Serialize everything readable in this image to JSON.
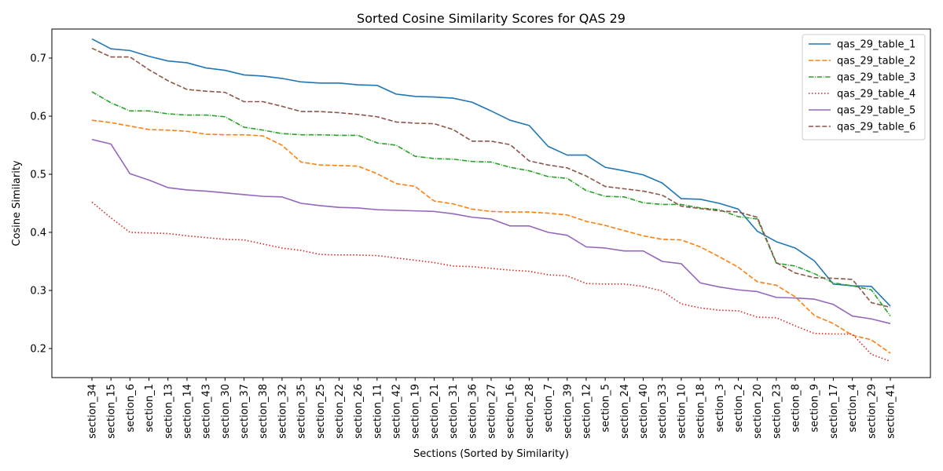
{
  "chart_data": {
    "type": "line",
    "title": "Sorted Cosine Similarity Scores for QAS 29",
    "xlabel": "Sections (Sorted by Similarity)",
    "ylabel": "Cosine Similarity",
    "ylim": [
      0.15,
      0.75
    ],
    "yticks": [
      "0.2",
      "0.3",
      "0.4",
      "0.5",
      "0.6",
      "0.7"
    ],
    "grid": false,
    "legend_position": "top-right",
    "categories": [
      "section_34",
      "section_15",
      "section_6",
      "section_1",
      "section_13",
      "section_14",
      "section_43",
      "section_30",
      "section_37",
      "section_38",
      "section_32",
      "section_35",
      "section_25",
      "section_22",
      "section_26",
      "section_11",
      "section_42",
      "section_19",
      "section_21",
      "section_31",
      "section_36",
      "section_27",
      "section_16",
      "section_28",
      "section_7",
      "section_39",
      "section_12",
      "section_5",
      "section_24",
      "section_40",
      "section_33",
      "section_10",
      "section_18",
      "section_3",
      "section_2",
      "section_20",
      "section_23",
      "section_8",
      "section_9",
      "section_17",
      "section_4",
      "section_29",
      "section_41"
    ],
    "series": [
      {
        "name": "qas_29_table_1",
        "color": "#1f77b4",
        "dash": "solid",
        "values": [
          0.733,
          0.716,
          0.713,
          0.703,
          0.695,
          0.692,
          0.683,
          0.679,
          0.671,
          0.669,
          0.665,
          0.659,
          0.657,
          0.657,
          0.654,
          0.653,
          0.638,
          0.634,
          0.633,
          0.631,
          0.624,
          0.609,
          0.593,
          0.584,
          0.548,
          0.533,
          0.533,
          0.512,
          0.506,
          0.499,
          0.485,
          0.458,
          0.457,
          0.45,
          0.44,
          0.402,
          0.384,
          0.373,
          0.351,
          0.311,
          0.308,
          0.307,
          0.273
        ]
      },
      {
        "name": "qas_29_table_2",
        "color": "#ff7f0e",
        "dash": "dashed",
        "values": [
          0.593,
          0.589,
          0.583,
          0.577,
          0.576,
          0.574,
          0.569,
          0.568,
          0.568,
          0.566,
          0.55,
          0.521,
          0.516,
          0.515,
          0.514,
          0.501,
          0.484,
          0.479,
          0.454,
          0.449,
          0.44,
          0.436,
          0.435,
          0.435,
          0.433,
          0.43,
          0.419,
          0.412,
          0.403,
          0.394,
          0.388,
          0.387,
          0.375,
          0.358,
          0.34,
          0.315,
          0.309,
          0.289,
          0.257,
          0.243,
          0.223,
          0.215,
          0.192
        ]
      },
      {
        "name": "qas_29_table_3",
        "color": "#2ca02c",
        "dash": "dashdot",
        "values": [
          0.642,
          0.623,
          0.609,
          0.609,
          0.604,
          0.602,
          0.602,
          0.599,
          0.581,
          0.576,
          0.57,
          0.568,
          0.568,
          0.567,
          0.567,
          0.554,
          0.55,
          0.531,
          0.527,
          0.526,
          0.522,
          0.521,
          0.512,
          0.506,
          0.496,
          0.493,
          0.472,
          0.462,
          0.461,
          0.451,
          0.448,
          0.448,
          0.442,
          0.439,
          0.427,
          0.423,
          0.347,
          0.342,
          0.329,
          0.313,
          0.308,
          0.301,
          0.256
        ]
      },
      {
        "name": "qas_29_table_4",
        "color": "#d62728",
        "dash": "dotted",
        "values": [
          0.452,
          0.425,
          0.4,
          0.399,
          0.398,
          0.394,
          0.391,
          0.388,
          0.387,
          0.38,
          0.373,
          0.369,
          0.362,
          0.361,
          0.361,
          0.36,
          0.356,
          0.352,
          0.348,
          0.342,
          0.341,
          0.338,
          0.335,
          0.333,
          0.327,
          0.325,
          0.312,
          0.311,
          0.311,
          0.307,
          0.299,
          0.277,
          0.27,
          0.266,
          0.265,
          0.254,
          0.253,
          0.239,
          0.226,
          0.225,
          0.225,
          0.19,
          0.178
        ]
      },
      {
        "name": "qas_29_table_5",
        "color": "#9467bd",
        "dash": "solid",
        "values": [
          0.56,
          0.552,
          0.501,
          0.49,
          0.477,
          0.473,
          0.471,
          0.468,
          0.465,
          0.462,
          0.461,
          0.45,
          0.446,
          0.443,
          0.442,
          0.439,
          0.438,
          0.437,
          0.436,
          0.432,
          0.426,
          0.423,
          0.411,
          0.411,
          0.4,
          0.395,
          0.375,
          0.373,
          0.368,
          0.368,
          0.35,
          0.346,
          0.313,
          0.306,
          0.301,
          0.298,
          0.288,
          0.287,
          0.285,
          0.276,
          0.256,
          0.251,
          0.243
        ]
      },
      {
        "name": "qas_29_table_6",
        "color": "#8c564b",
        "dash": "dashed",
        "values": [
          0.717,
          0.702,
          0.702,
          0.68,
          0.661,
          0.646,
          0.643,
          0.641,
          0.625,
          0.625,
          0.617,
          0.608,
          0.608,
          0.606,
          0.603,
          0.599,
          0.59,
          0.588,
          0.587,
          0.577,
          0.557,
          0.557,
          0.551,
          0.523,
          0.516,
          0.511,
          0.497,
          0.479,
          0.475,
          0.471,
          0.464,
          0.445,
          0.441,
          0.437,
          0.435,
          0.426,
          0.348,
          0.33,
          0.322,
          0.321,
          0.319,
          0.279,
          0.271
        ]
      }
    ]
  }
}
